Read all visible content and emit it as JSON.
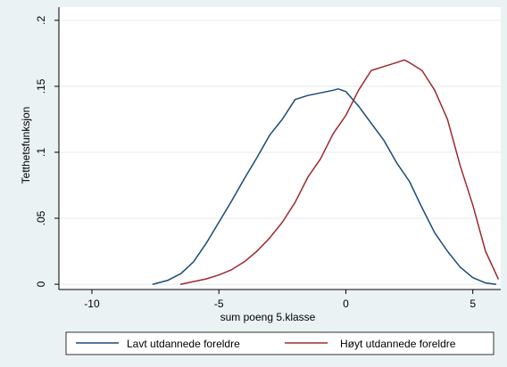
{
  "chart_data": {
    "type": "line",
    "xlabel": "sum poeng 5.klasse",
    "ylabel": "Tetthetsfunksjon",
    "xlim": [
      -11.3,
      6.1
    ],
    "ylim": [
      -0.004,
      0.21
    ],
    "x_ticks": [
      -10,
      -5,
      0,
      5
    ],
    "x_tick_labels": [
      "-10",
      "-5",
      "0",
      "5"
    ],
    "y_ticks": [
      0,
      0.05,
      0.1,
      0.15,
      0.2
    ],
    "y_tick_labels": [
      "0",
      ".05",
      ".1",
      ".15",
      ".2"
    ],
    "grid": "horizontal",
    "legend_position": "bottom",
    "series": [
      {
        "name": "Lavt utdannede foreldre",
        "color": "#1a4a7a",
        "x": [
          -7.6,
          -7.0,
          -6.5,
          -6.0,
          -5.5,
          -5.0,
          -4.5,
          -4.0,
          -3.5,
          -3.0,
          -2.5,
          -2.0,
          -1.5,
          -1.0,
          -0.5,
          -0.3,
          0.0,
          0.5,
          1.0,
          1.5,
          2.0,
          2.5,
          3.0,
          3.5,
          4.0,
          4.5,
          5.0,
          5.5,
          5.9
        ],
        "y": [
          0.0,
          0.003,
          0.008,
          0.017,
          0.031,
          0.047,
          0.063,
          0.08,
          0.096,
          0.113,
          0.125,
          0.14,
          0.143,
          0.145,
          0.147,
          0.148,
          0.146,
          0.135,
          0.122,
          0.109,
          0.092,
          0.078,
          0.058,
          0.039,
          0.025,
          0.013,
          0.005,
          0.001,
          0.0
        ]
      },
      {
        "name": "Høyt utdannede foreldre",
        "color": "#a0282f",
        "x": [
          -6.5,
          -6.0,
          -5.5,
          -5.0,
          -4.5,
          -4.0,
          -3.5,
          -3.0,
          -2.5,
          -2.0,
          -1.5,
          -1.0,
          -0.5,
          0.0,
          0.5,
          1.0,
          1.5,
          2.0,
          2.3,
          2.5,
          3.0,
          3.5,
          4.0,
          4.5,
          5.0,
          5.5,
          6.0
        ],
        "y": [
          0.0,
          0.002,
          0.004,
          0.007,
          0.011,
          0.017,
          0.025,
          0.035,
          0.047,
          0.062,
          0.081,
          0.095,
          0.114,
          0.128,
          0.147,
          0.162,
          0.165,
          0.168,
          0.17,
          0.168,
          0.162,
          0.147,
          0.125,
          0.09,
          0.06,
          0.025,
          0.004
        ]
      }
    ]
  }
}
